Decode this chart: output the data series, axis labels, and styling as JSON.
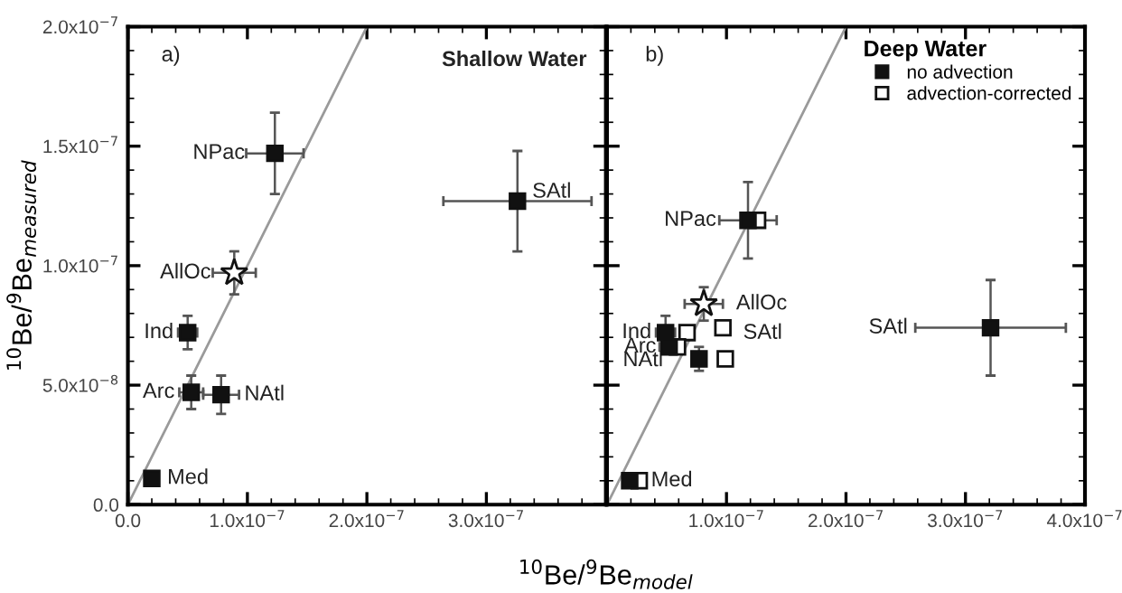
{
  "chart_data": [
    {
      "type": "scatter",
      "ylabel": "$^{10}$Be/$^{9}$Be$_{measured}$",
      "xlabel": "$^{10}$Be/$^{9}$Be$_{model}$",
      "xlim": [
        0,
        4e-07
      ],
      "ylim": [
        0,
        2e-07
      ],
      "xticks": [
        {
          "value": 0,
          "label": "0.0"
        },
        {
          "value": 1e-07,
          "label": "1.0x10$^{−7}$"
        },
        {
          "value": 2e-07,
          "label": "2.0x10$^{−7}$"
        },
        {
          "value": 3e-07,
          "label": "3.0x10$^{−7}$"
        },
        {
          "value": 4e-07,
          "label": null
        }
      ],
      "yticks": [
        {
          "value": 0,
          "label": "0.0"
        },
        {
          "value": 5e-08,
          "label": "5.0x10$^{−8}$"
        },
        {
          "value": 1e-07,
          "label": "1.0x10$^{−7}$"
        },
        {
          "value": 1.5e-07,
          "label": "1.5x10$^{−7}$"
        },
        {
          "value": 2e-07,
          "label": "2.0x10$^{−7}$"
        }
      ],
      "grid": false,
      "legend": false,
      "series": [
        {
          "type": "line",
          "color": "#9a9a9a",
          "x": [
            0,
            2e-07
          ],
          "values": [
            0,
            2e-07
          ],
          "marker": "none",
          "line_style": "solid"
        },
        {
          "color": "#111111",
          "marker": "square",
          "x": [
            1.23e-07,
            3.26e-07,
            5e-08,
            5.3e-08,
            7.8e-08,
            2e-08
          ],
          "values": [
            1.47e-07,
            1.27e-07,
            7.2e-08,
            4.7e-08,
            4.6e-08,
            1.1e-08
          ],
          "xerrors": [
            2.4e-08,
            6.2e-08,
            8e-09,
            1e-08,
            1.5e-08,
            null
          ],
          "errors": [
            1.7e-08,
            2.1e-08,
            7e-09,
            7e-09,
            8e-09,
            null
          ]
        },
        {
          "color": "#ffffff",
          "marker": "star",
          "x": [
            8.9e-08
          ],
          "values": [
            9.7e-08
          ],
          "xerrors": [
            1.8e-08
          ],
          "errors": [
            9e-09
          ]
        }
      ],
      "annotations": [
        "a)",
        "Shallow Water",
        {
          "text": "NPac",
          "x": 1.23e-07,
          "y": 1.47e-07
        },
        {
          "text": "SAtl",
          "x": 3.26e-07,
          "y": 1.27e-07
        },
        {
          "text": "AllOc",
          "x": 8.9e-08,
          "y": 9.7e-08
        },
        {
          "text": "Ind",
          "x": 5e-08,
          "y": 7.2e-08
        },
        {
          "text": "Arc",
          "x": 5.3e-08,
          "y": 4.7e-08
        },
        {
          "text": "NAtl",
          "x": 7.8e-08,
          "y": 4.6e-08
        },
        {
          "text": "Med",
          "x": 2e-08,
          "y": 1.1e-08
        }
      ]
    },
    {
      "type": "scatter",
      "tick_labels": "x",
      "xlim": [
        0,
        4e-07
      ],
      "ylim": [
        0,
        2e-07
      ],
      "xticks": [
        {
          "value": 0,
          "label": null
        },
        {
          "value": 1e-07,
          "label": "1.0x10$^{−7}$"
        },
        {
          "value": 2e-07,
          "label": "2.0x10$^{−7}$"
        },
        {
          "value": 3e-07,
          "label": "3.0x10$^{−7}$"
        },
        {
          "value": 4e-07,
          "label": "4.0x10$^{−7}$"
        }
      ],
      "yticks": [
        0,
        5e-08,
        1e-07,
        1.5e-07,
        2e-07
      ],
      "grid": false,
      "legend": "top right",
      "legend_title": "Deep Water",
      "series": [
        {
          "type": "line",
          "color": "#9a9a9a",
          "x": [
            0,
            2e-07
          ],
          "values": [
            0,
            2e-07
          ],
          "marker": "none",
          "line_style": "solid"
        },
        {
          "name": "no advection",
          "color": "#111111",
          "marker": "square",
          "x": [
            1.18e-07,
            4.9e-08,
            5.2e-08,
            7.7e-08,
            3.21e-07,
            1.9e-08
          ],
          "values": [
            1.19e-07,
            7.2e-08,
            6.6e-08,
            6.1e-08,
            7.4e-08,
            1e-08
          ],
          "xerrors": [
            2.4e-08,
            8e-09,
            8e-09,
            null,
            6.3e-08,
            null
          ],
          "errors": [
            1.6e-08,
            7e-09,
            null,
            5e-09,
            2e-08,
            null
          ]
        },
        {
          "name": "advection-corrected",
          "color": "#ffffff",
          "marker": "square",
          "x": [
            1.26e-07,
            6.7e-08,
            5.9e-08,
            9.9e-08,
            9.7e-08,
            2.7e-08
          ],
          "values": [
            1.19e-07,
            7.2e-08,
            6.6e-08,
            6.1e-08,
            7.4e-08,
            1e-08
          ]
        },
        {
          "color": "#ffffff",
          "marker": "star",
          "x": [
            8.1e-08
          ],
          "values": [
            8.4e-08
          ],
          "xerrors": [
            1.6e-08
          ],
          "errors": [
            7e-09
          ]
        }
      ],
      "annotations": [
        "b)",
        {
          "text": "NPac",
          "x": 1.18e-07,
          "y": 1.19e-07
        },
        {
          "text": "AllOc",
          "x": 8.1e-08,
          "y": 8.4e-08
        },
        {
          "text": "Ind",
          "x": 4.9e-08,
          "y": 7.2e-08
        },
        {
          "text": "SAtl",
          "x": 9.7e-08,
          "y": 7.4e-08
        },
        {
          "text": "Arc",
          "x": 5.2e-08,
          "y": 6.6e-08
        },
        {
          "text": "NAtl",
          "x": 7.7e-08,
          "y": 6.1e-08
        },
        {
          "text": "Med",
          "x": 2.7e-08,
          "y": 1e-08
        },
        {
          "text": "SAtl",
          "x": 2.58e-07,
          "y": 7.4e-08
        }
      ]
    }
  ]
}
